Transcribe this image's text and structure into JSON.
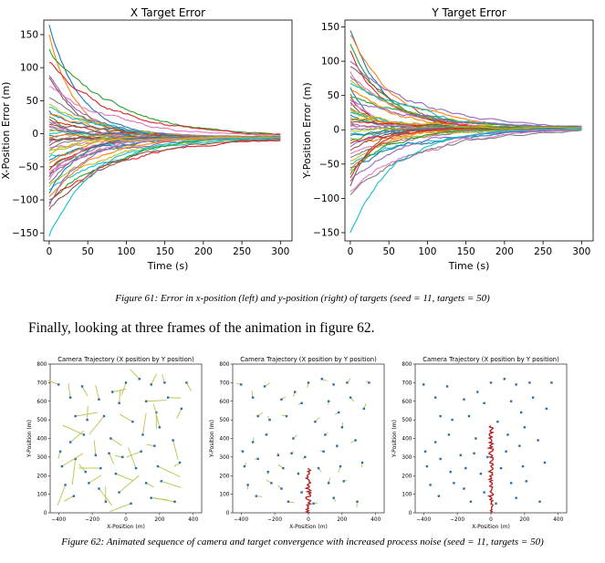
{
  "top_charts": [
    {
      "id": "x",
      "title": "X Target Error",
      "xlabel": "Time (s)",
      "ylabel": "X-Position Error (m)",
      "xticks": [
        0,
        50,
        100,
        150,
        200,
        250,
        300
      ],
      "yticks": [
        -150,
        -100,
        -50,
        0,
        50,
        100,
        150
      ],
      "xlim": [
        -7,
        315
      ],
      "ylim": [
        -162,
        172
      ],
      "endpoint": -5,
      "start_values": [
        165,
        150,
        128,
        108,
        88,
        85,
        72,
        55,
        45,
        40,
        35,
        30,
        26,
        22,
        18,
        14,
        10,
        6,
        3,
        0,
        -2,
        -5,
        -8,
        -10,
        -14,
        -18,
        -22,
        -26,
        -30,
        -35,
        -40,
        -45,
        -50,
        -55,
        -60,
        -65,
        -70,
        -75,
        -80,
        -85,
        -90,
        -95,
        -100,
        -105,
        -110,
        -115,
        -60,
        12,
        -25,
        -155
      ]
    },
    {
      "id": "y",
      "title": "Y Target Error",
      "xlabel": "Time (s)",
      "ylabel": "Y-Position Error (m)",
      "xticks": [
        0,
        50,
        100,
        150,
        200,
        250,
        300
      ],
      "yticks": [
        -150,
        -100,
        -50,
        0,
        50,
        100,
        150
      ],
      "xlim": [
        -7,
        315
      ],
      "ylim": [
        -162,
        160
      ],
      "endpoint": 2,
      "start_values": [
        145,
        138,
        125,
        115,
        100,
        92,
        85,
        78,
        72,
        68,
        62,
        58,
        52,
        48,
        44,
        40,
        36,
        32,
        28,
        25,
        22,
        18,
        15,
        12,
        10,
        7,
        4,
        1,
        -2,
        -5,
        -8,
        -12,
        -16,
        -20,
        -25,
        -30,
        -35,
        -40,
        -45,
        -50,
        -55,
        -60,
        -65,
        -70,
        -75,
        -82,
        -90,
        -95,
        30,
        -150
      ]
    }
  ],
  "series_colors": [
    "#1f77b4",
    "#ff7f0e",
    "#2ca02c",
    "#d62728",
    "#9467bd",
    "#8c564b",
    "#e377c2",
    "#7f7f7f",
    "#bcbd22",
    "#17becf"
  ],
  "figure61_caption": "Figure 61: Error in x-position (left) and y-position (right) of targets (seed = 11, targets = 50)",
  "body_text": "Finally, looking at three frames of the animation in figure 62.",
  "bottom_charts": [
    {
      "title": "Camera Trajectory (X position by Y position)",
      "xlabel": "X-Position (m)",
      "ylabel": "Y-Position (m)",
      "xticks": [
        -400,
        -200,
        0,
        200,
        400
      ],
      "yticks": [
        0,
        100,
        200,
        300,
        400,
        500,
        600,
        700,
        800
      ],
      "xlim": [
        -450,
        450
      ],
      "ylim": [
        0,
        800
      ],
      "frame": 1,
      "camera_path_top": 0
    },
    {
      "title": "Camera Trajectory (X position by Y position)",
      "xlabel": "X-Position (m)",
      "ylabel": "Y-Position (m)",
      "xticks": [
        -400,
        -200,
        0,
        200,
        400
      ],
      "yticks": [
        0,
        100,
        200,
        300,
        400,
        500,
        600,
        700,
        800
      ],
      "xlim": [
        -450,
        450
      ],
      "ylim": [
        0,
        800
      ],
      "frame": 2,
      "camera_path_top": 240
    },
    {
      "title": "Camera Trajectory (X position by Y position)",
      "xlabel": "X-Position (m)",
      "ylabel": "Y-Position (m)",
      "xticks": [
        -400,
        -200,
        0,
        200,
        400
      ],
      "yticks": [
        0,
        100,
        200,
        300,
        400,
        500,
        600,
        700,
        800
      ],
      "xlim": [
        -450,
        450
      ],
      "ylim": [
        0,
        800
      ],
      "frame": 3,
      "camera_path_top": 470
    }
  ],
  "figure62_caption": "Figure 62: Animated sequence of camera and target convergence with increased process noise (seed = 11, targets = 50)",
  "chart_data": [
    {
      "type": "line",
      "title": "X Target Error",
      "xlabel": "Time (s)",
      "ylabel": "X-Position Error (m)",
      "xlim": [
        0,
        300
      ],
      "ylim": [
        -160,
        170
      ],
      "series_count": 50,
      "note": "50 target error traces converging to ~0 by t=300"
    },
    {
      "type": "line",
      "title": "Y Target Error",
      "xlabel": "Time (s)",
      "ylabel": "Y-Position Error (m)",
      "xlim": [
        0,
        300
      ],
      "ylim": [
        -160,
        150
      ],
      "series_count": 50,
      "note": "50 target error traces converging to ~0 by t=300"
    },
    {
      "type": "scatter",
      "title": "Camera Trajectory (X position by Y position)",
      "xlabel": "X-Position (m)",
      "ylabel": "Y-Position (m)",
      "xlim": [
        -450,
        450
      ],
      "ylim": [
        0,
        800
      ],
      "frames": 3
    }
  ],
  "targets": [
    [
      -330,
      620
    ],
    [
      -160,
      610
    ],
    [
      -80,
      650
    ],
    [
      -400,
      690
    ],
    [
      80,
      720
    ],
    [
      150,
      690
    ],
    [
      230,
      700
    ],
    [
      360,
      700
    ],
    [
      -300,
      520
    ],
    [
      -230,
      500
    ],
    [
      -130,
      520
    ],
    [
      40,
      490
    ],
    [
      180,
      540
    ],
    [
      -90,
      400
    ],
    [
      -250,
      420
    ],
    [
      -330,
      380
    ],
    [
      -390,
      330
    ],
    [
      -300,
      290
    ],
    [
      -180,
      310
    ],
    [
      -100,
      320
    ],
    [
      -20,
      300
    ],
    [
      90,
      330
    ],
    [
      170,
      360
    ],
    [
      280,
      390
    ],
    [
      -380,
      250
    ],
    [
      -240,
      220
    ],
    [
      -60,
      210
    ],
    [
      60,
      240
    ],
    [
      190,
      250
    ],
    [
      320,
      270
    ],
    [
      -160,
      130
    ],
    [
      -40,
      110
    ],
    [
      120,
      160
    ],
    [
      210,
      170
    ],
    [
      -310,
      90
    ],
    [
      -120,
      60
    ],
    [
      30,
      50
    ],
    [
      150,
      80
    ],
    [
      290,
      60
    ],
    [
      -360,
      150
    ],
    [
      -220,
      160
    ],
    [
      250,
      620
    ],
    [
      120,
      600
    ],
    [
      -40,
      590
    ],
    [
      -260,
      680
    ],
    [
      0,
      700
    ],
    [
      330,
      560
    ],
    [
      100,
      420
    ],
    [
      -150,
      240
    ],
    [
      200,
      460
    ]
  ]
}
